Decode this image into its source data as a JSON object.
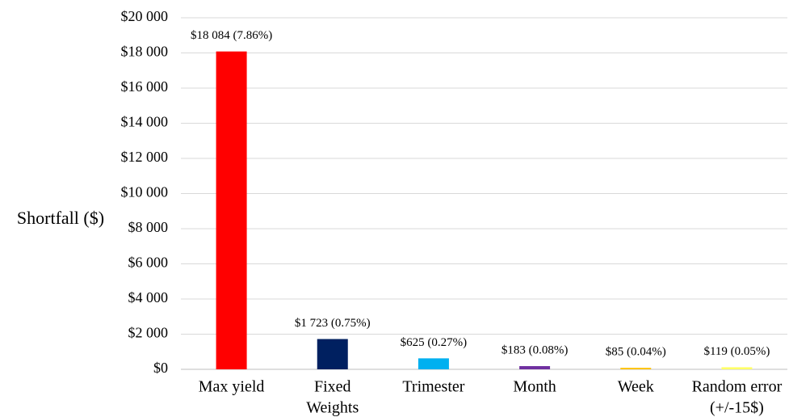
{
  "chart_data": {
    "type": "bar",
    "y_axis_label": "Shortfall ($)",
    "categories": [
      [
        "Max yield"
      ],
      [
        "Fixed",
        "Weights"
      ],
      [
        "Trimester"
      ],
      [
        "Month"
      ],
      [
        "Week"
      ],
      [
        "Random error",
        "(+/-15$)"
      ]
    ],
    "values": [
      18084,
      1723,
      625,
      183,
      85,
      119
    ],
    "value_labels": [
      "$18 084 (7.86%)",
      "$1 723 (0.75%)",
      "$625 (0.27%)",
      "$183 (0.08%)",
      "$85 (0.04%)",
      "$119 (0.05%)"
    ],
    "colors": [
      "#ff0000",
      "#002060",
      "#00b0f0",
      "#7030a0",
      "#ffc000",
      "#ffff66"
    ],
    "ylim": [
      0,
      20000
    ],
    "yticks": [
      {
        "value": 0,
        "label": "$0"
      },
      {
        "value": 2000,
        "label": "$2 000"
      },
      {
        "value": 4000,
        "label": "$4 000"
      },
      {
        "value": 6000,
        "label": "$6 000"
      },
      {
        "value": 8000,
        "label": "$8 000"
      },
      {
        "value": 10000,
        "label": "$10 000"
      },
      {
        "value": 12000,
        "label": "$12 000"
      },
      {
        "value": 14000,
        "label": "$14 000"
      },
      {
        "value": 16000,
        "label": "$16 000"
      },
      {
        "value": 18000,
        "label": "$18 000"
      },
      {
        "value": 20000,
        "label": "$20 000"
      }
    ],
    "grid": true
  }
}
